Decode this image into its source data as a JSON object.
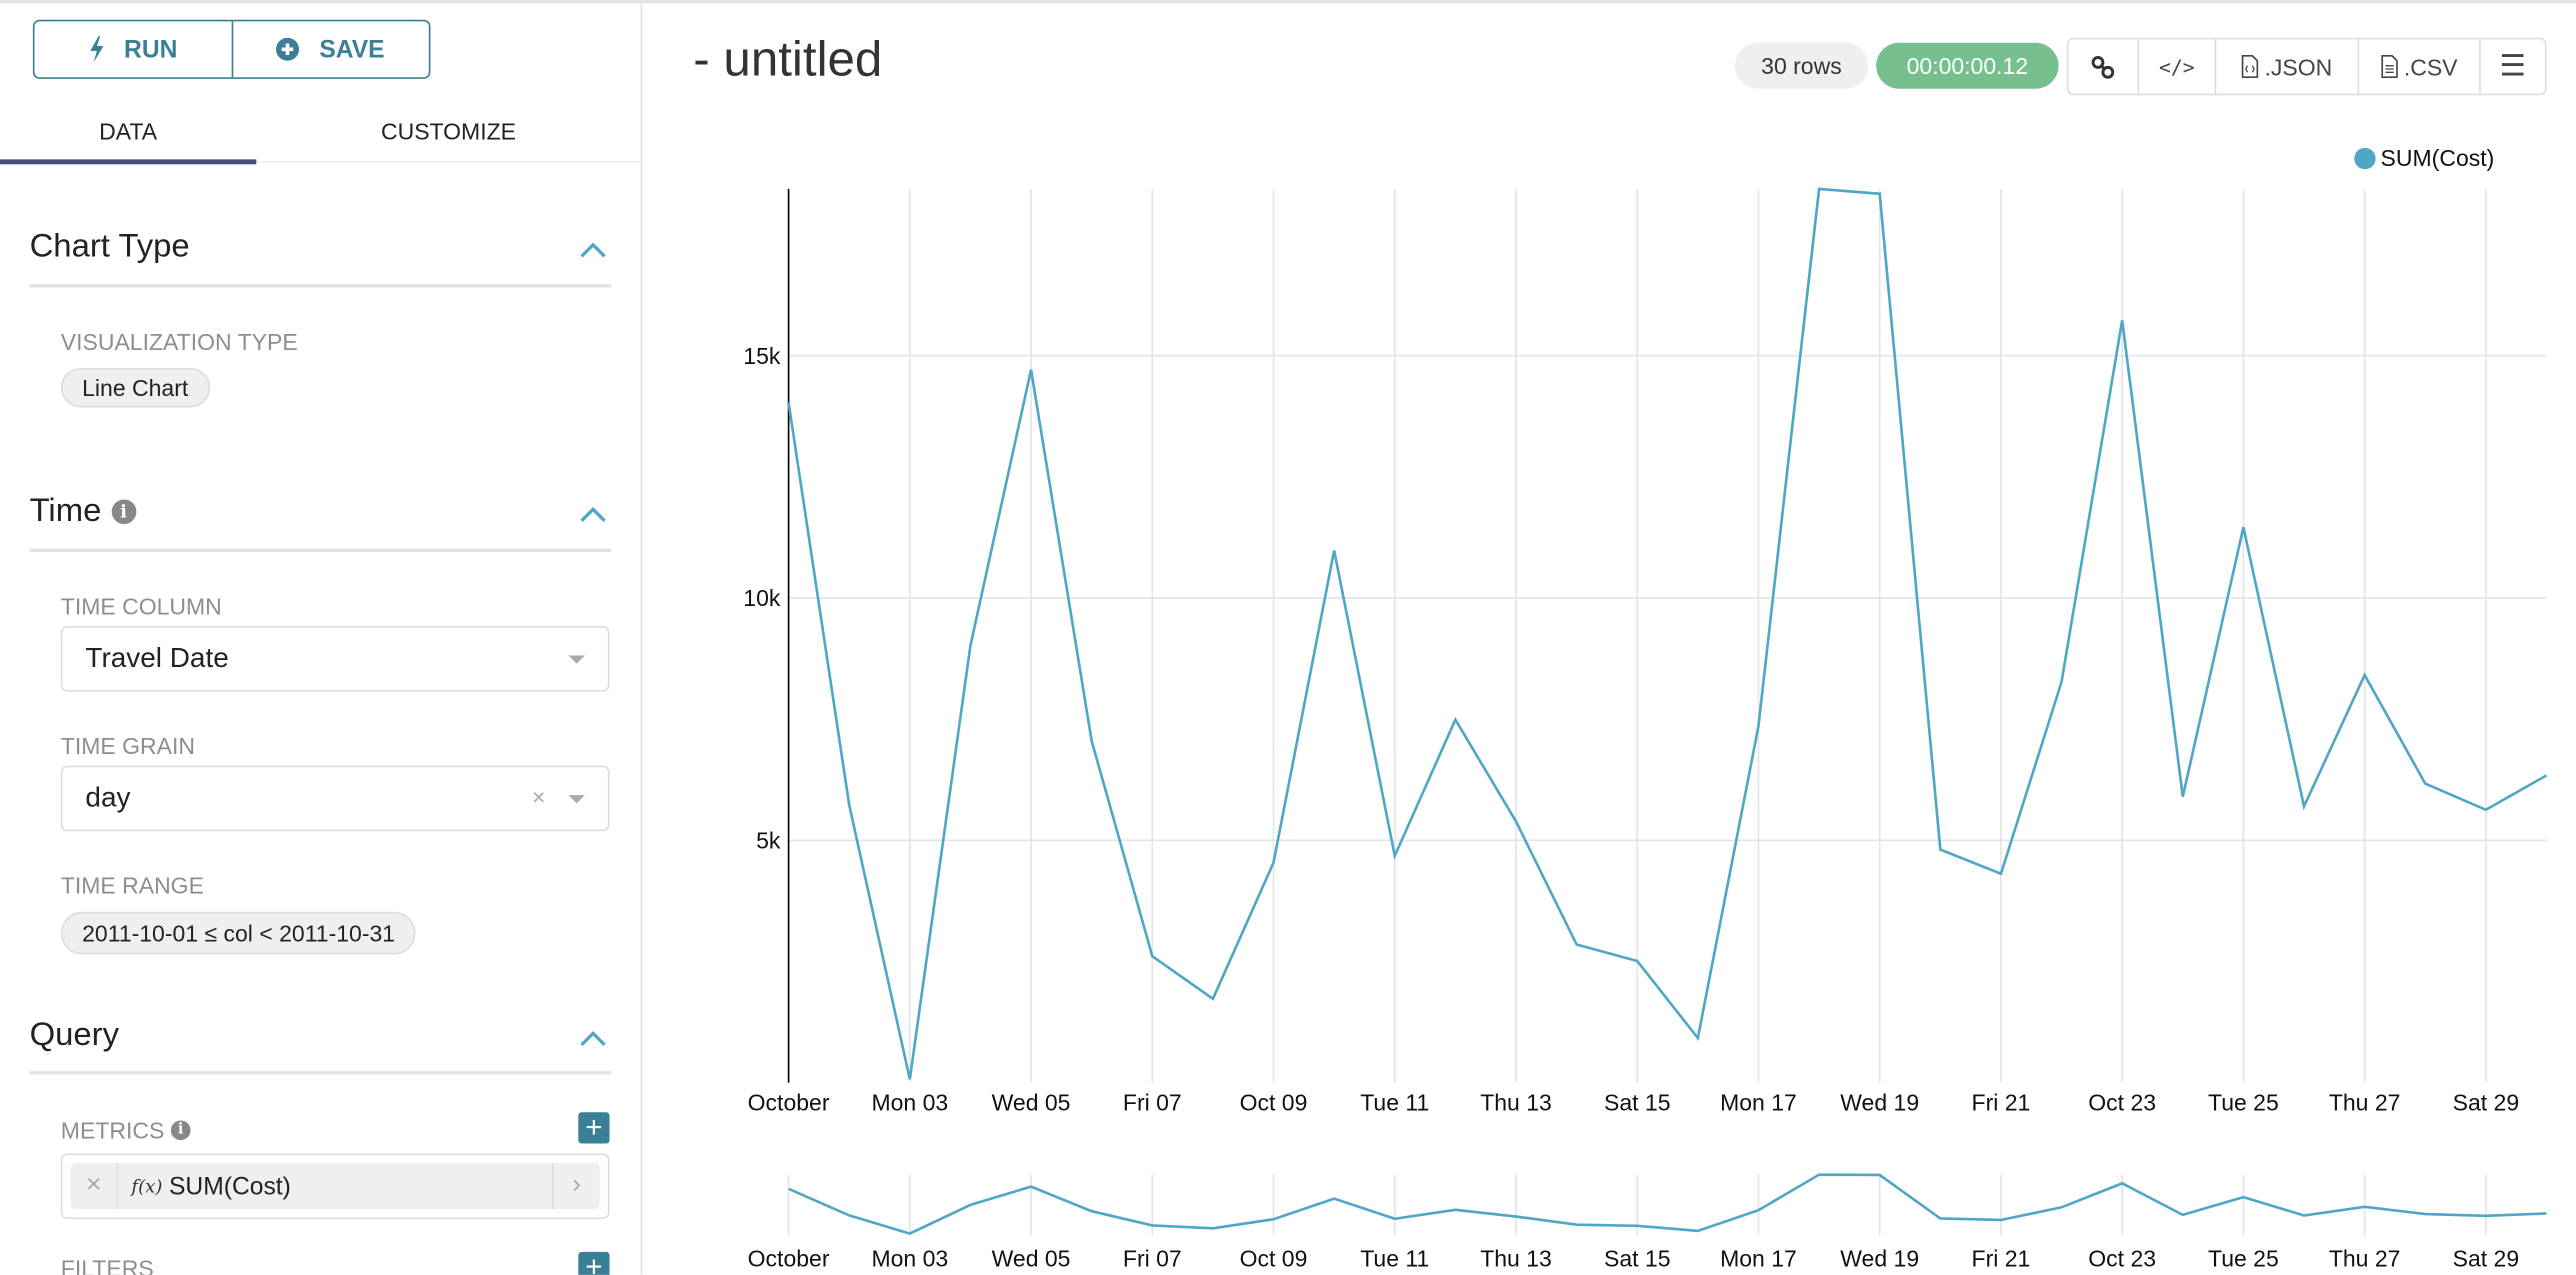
{
  "toolbar": {
    "run_label": "RUN",
    "save_label": "SAVE"
  },
  "tabs": [
    {
      "label": "DATA",
      "active": true
    },
    {
      "label": "CUSTOMIZE",
      "active": false
    }
  ],
  "sections": {
    "chart_type": {
      "title": "Chart Type",
      "viz_label": "VISUALIZATION TYPE",
      "viz_value": "Line Chart"
    },
    "time": {
      "title": "Time",
      "time_column_label": "TIME COLUMN",
      "time_column_value": "Travel Date",
      "time_grain_label": "TIME GRAIN",
      "time_grain_value": "day",
      "time_range_label": "TIME RANGE",
      "time_range_value": "2011-10-01 ≤ col < 2011-10-31"
    },
    "query": {
      "title": "Query",
      "metrics_label": "METRICS",
      "metric_fx": "f(x)",
      "metric_value": "SUM(Cost)",
      "filters_label": "FILTERS"
    }
  },
  "header": {
    "title": "- untitled",
    "rows_badge": "30 rows",
    "timer_badge": "00:00:00.12",
    "json_label": ".JSON",
    "csv_label": ".CSV"
  },
  "colors": {
    "accent": "#3b7f96",
    "series": "#4fa7c5",
    "timer": "#76c08f"
  },
  "chart_data": {
    "type": "line",
    "legend": "top-right",
    "series": [
      {
        "name": "SUM(Cost)",
        "values": [
          14030,
          5730,
          70,
          9020,
          14710,
          7050,
          2610,
          1730,
          4540,
          10980,
          4680,
          7490,
          5390,
          2850,
          2510,
          920,
          7360,
          18440,
          18340,
          4810,
          4310,
          8270,
          15730,
          5900,
          11460,
          5700,
          8410,
          6170,
          5630,
          6340
        ]
      }
    ],
    "x": [
      "2011-10-01",
      "2011-10-02",
      "2011-10-03",
      "2011-10-04",
      "2011-10-05",
      "2011-10-06",
      "2011-10-07",
      "2011-10-08",
      "2011-10-09",
      "2011-10-10",
      "2011-10-11",
      "2011-10-12",
      "2011-10-13",
      "2011-10-14",
      "2011-10-15",
      "2011-10-16",
      "2011-10-17",
      "2011-10-18",
      "2011-10-19",
      "2011-10-20",
      "2011-10-21",
      "2011-10-22",
      "2011-10-23",
      "2011-10-24",
      "2011-10-25",
      "2011-10-26",
      "2011-10-27",
      "2011-10-28",
      "2011-10-29",
      "2011-10-30"
    ],
    "x_tick_labels": [
      "October",
      "Mon 03",
      "Wed 05",
      "Fri 07",
      "Oct 09",
      "Tue 11",
      "Thu 13",
      "Sat 15",
      "Mon 17",
      "Wed 19",
      "Fri 21",
      "Oct 23",
      "Tue 25",
      "Thu 27",
      "Sat 29"
    ],
    "y_ticks": [
      {
        "value": 5000,
        "label": "5k"
      },
      {
        "value": 10000,
        "label": "10k"
      },
      {
        "value": 15000,
        "label": "15k"
      }
    ],
    "ylim": [
      0,
      18440
    ],
    "grid": true,
    "overview_brush": true
  }
}
